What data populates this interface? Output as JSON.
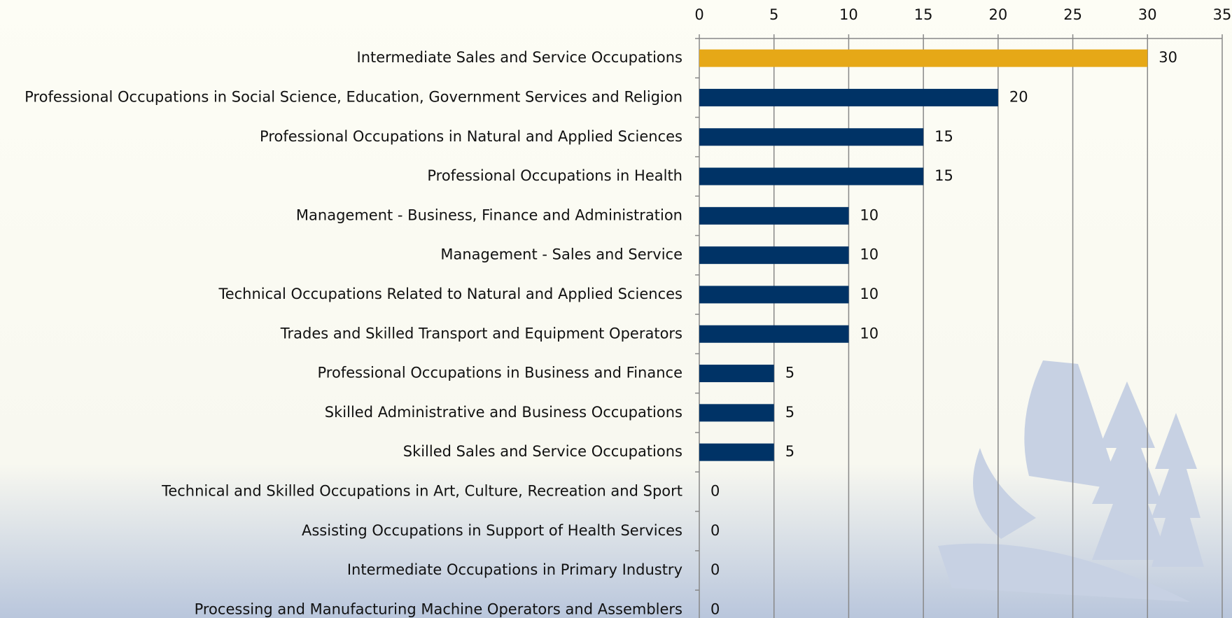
{
  "chart_data": {
    "type": "hbar",
    "categories": [
      "Intermediate Sales and Service Occupations",
      "Professional Occupations in Social Science, Education, Government Services and Religion",
      "Professional Occupations in Natural and Applied Sciences",
      "Professional Occupations in Health",
      "Management - Business, Finance and Administration",
      "Management - Sales and Service",
      "Technical Occupations Related to Natural and Applied Sciences",
      "Trades and Skilled Transport and Equipment Operators",
      "Professional Occupations in Business and Finance",
      "Skilled Administrative and Business Occupations",
      "Skilled Sales and Service Occupations",
      "Technical and Skilled Occupations in Art, Culture, Recreation and Sport",
      "Assisting Occupations in Support of Health Services",
      "Intermediate Occupations in Primary Industry",
      "Processing and Manufacturing Machine Operators and Assemblers"
    ],
    "values": [
      30,
      20,
      15,
      15,
      10,
      10,
      10,
      10,
      5,
      5,
      5,
      0,
      0,
      0,
      0
    ],
    "colors": [
      "#e6a817",
      "#003366",
      "#003366",
      "#003366",
      "#003366",
      "#003366",
      "#003366",
      "#003366",
      "#003366",
      "#003366",
      "#003366",
      "#003366",
      "#003366",
      "#003366",
      "#003366"
    ],
    "xlim": [
      0,
      35
    ],
    "xticks": [
      0,
      5,
      10,
      15,
      20,
      25,
      30,
      35
    ],
    "grid": true
  }
}
